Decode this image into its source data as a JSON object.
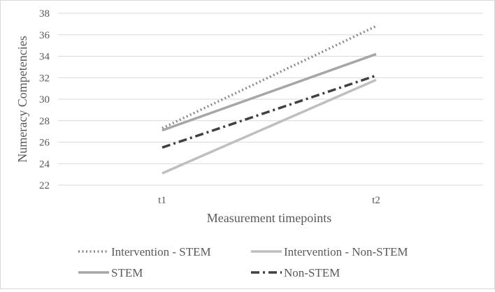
{
  "chart_data": {
    "type": "line",
    "title": "",
    "xlabel": "Measurement timepoints",
    "ylabel": "Numeracy Competencies",
    "categories": [
      "t1",
      "t2"
    ],
    "ylim": [
      22,
      38
    ],
    "yticks": [
      "22",
      "24",
      "26",
      "28",
      "30",
      "32",
      "34",
      "36",
      "38"
    ],
    "grid": true,
    "legend_position": "bottom",
    "series": [
      {
        "name": "Intervention - STEM",
        "values": [
          27.3,
          36.8
        ],
        "color": "#8c8c8c",
        "style": "dotted"
      },
      {
        "name": "Intervention - Non-STEM",
        "values": [
          23.1,
          31.8
        ],
        "color": "#bfbfbf",
        "style": "solid"
      },
      {
        "name": "STEM",
        "values": [
          27.1,
          34.2
        ],
        "color": "#a6a6a6",
        "style": "solid"
      },
      {
        "name": "Non-STEM",
        "values": [
          25.5,
          32.2
        ],
        "color": "#404040",
        "style": "dashdot"
      }
    ]
  }
}
